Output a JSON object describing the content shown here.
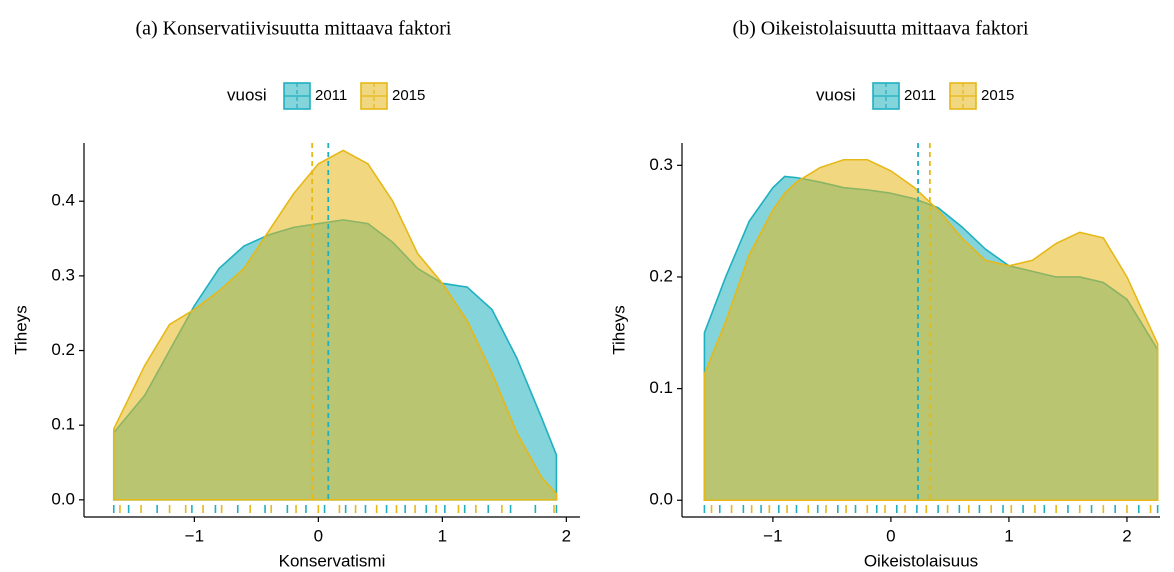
{
  "chart_data": [
    {
      "type": "density",
      "title": "(a) Konservatiivisuutta mittaava faktori",
      "x_label": "Konservatismi",
      "y_label": "Tiheys",
      "legend_title": "vuosi",
      "xlim": [
        -1.89,
        2.11
      ],
      "ylim": [
        -0.023,
        0.478
      ],
      "xticks": [
        {
          "value": -1,
          "label": "−1"
        },
        0,
        1,
        2
      ],
      "yticks": [
        {
          "value": 0,
          "label": "0.0"
        },
        0.1,
        0.2,
        0.3,
        0.4
      ],
      "x": [
        -1.65,
        -1.4,
        -1.2,
        -1.0,
        -0.8,
        -0.6,
        -0.4,
        -0.2,
        0,
        0.2,
        0.4,
        0.6,
        0.8,
        1.0,
        1.2,
        1.4,
        1.6,
        1.8,
        1.92
      ],
      "series": [
        {
          "name": "2011",
          "color": "#1fb0c0",
          "mean": 0.08,
          "values": [
            0.09,
            0.14,
            0.2,
            0.26,
            0.31,
            0.34,
            0.355,
            0.365,
            0.37,
            0.375,
            0.37,
            0.345,
            0.31,
            0.29,
            0.285,
            0.255,
            0.19,
            0.11,
            0.06
          ],
          "rug": [
            -1.65,
            -1.53,
            -1.3,
            -1.02,
            -0.83,
            -0.65,
            -0.43,
            -0.25,
            -0.1,
            0.05,
            0.22,
            0.38,
            0.55,
            0.7,
            0.87,
            1.02,
            1.18,
            1.37,
            1.55,
            1.75,
            1.92
          ]
        },
        {
          "name": "2015",
          "color": "#e6b818",
          "mean": -0.05,
          "values": [
            0.095,
            0.18,
            0.235,
            0.255,
            0.28,
            0.31,
            0.36,
            0.41,
            0.45,
            0.468,
            0.45,
            0.4,
            0.33,
            0.29,
            0.24,
            0.17,
            0.09,
            0.03,
            0.008
          ],
          "rug": [
            -1.6,
            -1.43,
            -1.2,
            -1.07,
            -0.93,
            -0.78,
            -0.55,
            -0.38,
            -0.18,
            0,
            0.17,
            0.3,
            0.47,
            0.63,
            0.78,
            0.95,
            1.13,
            1.27,
            1.48,
            1.9
          ]
        }
      ]
    },
    {
      "type": "density",
      "title": "(b) Oikeistolaisuutta mittaava faktori",
      "x_label": "Oikeistolaisuus",
      "y_label": "Tiheys",
      "legend_title": "vuosi",
      "xlim": [
        -1.77,
        2.28
      ],
      "ylim": [
        -0.015,
        0.32
      ],
      "xticks": [
        {
          "value": -1,
          "label": "−1"
        },
        0,
        1,
        2
      ],
      "yticks": [
        {
          "value": 0,
          "label": "0.0"
        },
        0.1,
        0.2,
        0.3
      ],
      "x": [
        -1.58,
        -1.4,
        -1.2,
        -1.0,
        -0.9,
        -0.8,
        -0.6,
        -0.4,
        -0.2,
        0,
        0.2,
        0.4,
        0.6,
        0.8,
        1.0,
        1.2,
        1.4,
        1.6,
        1.8,
        2.0,
        2.26
      ],
      "series": [
        {
          "name": "2011",
          "color": "#1fb0c0",
          "mean": 0.23,
          "values": [
            0.15,
            0.2,
            0.25,
            0.28,
            0.29,
            0.289,
            0.285,
            0.28,
            0.278,
            0.275,
            0.27,
            0.262,
            0.245,
            0.225,
            0.21,
            0.205,
            0.2,
            0.2,
            0.195,
            0.18,
            0.135
          ],
          "rug": [
            -1.58,
            -1.45,
            -1.25,
            -1.1,
            -0.95,
            -0.8,
            -0.62,
            -0.45,
            -0.3,
            -0.12,
            0.05,
            0.22,
            0.4,
            0.58,
            0.75,
            0.95,
            1.12,
            1.3,
            1.5,
            1.7,
            1.9,
            2.1,
            2.26
          ]
        },
        {
          "name": "2015",
          "color": "#e6b818",
          "mean": 0.33,
          "values": [
            0.113,
            0.16,
            0.22,
            0.26,
            0.275,
            0.285,
            0.298,
            0.305,
            0.305,
            0.295,
            0.28,
            0.26,
            0.235,
            0.215,
            0.21,
            0.215,
            0.23,
            0.24,
            0.235,
            0.2,
            0.14
          ],
          "rug": [
            -1.52,
            -1.35,
            -1.18,
            -1.03,
            -0.88,
            -0.7,
            -0.55,
            -0.38,
            -0.2,
            -0.05,
            0.12,
            0.3,
            0.48,
            0.66,
            0.85,
            1.02,
            1.22,
            1.4,
            1.6,
            1.8,
            2.0,
            2.2
          ]
        }
      ]
    }
  ]
}
